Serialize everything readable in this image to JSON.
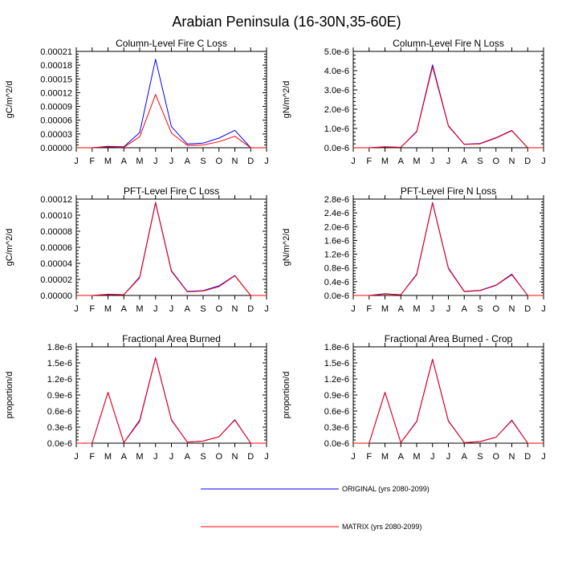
{
  "title": "Arabian Peninsula (16-30N,35-60E)",
  "colors": {
    "original": "#0000ff",
    "matrix": "#ff0000"
  },
  "legend": [
    {
      "name": "ORIGINAL (yrs 2080-2099)",
      "color": "#0000ff"
    },
    {
      "name": "MATRIX (yrs 2080-2099)",
      "color": "#ff0000"
    }
  ],
  "chart_data": [
    {
      "type": "line",
      "title": "Column-Level Fire C Loss",
      "ylabel": "gC/m^2/d",
      "xlabel": "",
      "categories": [
        "J",
        "F",
        "M",
        "A",
        "M",
        "J",
        "J",
        "A",
        "S",
        "O",
        "N",
        "D",
        "J"
      ],
      "ylim": [
        0,
        0.00021
      ],
      "yticks": [
        "0.00000",
        "0.00003",
        "0.00006",
        "0.00009",
        "0.00012",
        "0.00015",
        "0.00018",
        "0.00021"
      ],
      "series": [
        {
          "name": "ORIGINAL (yrs 2080-2099)",
          "values": [
            0,
            0,
            3e-06,
            2e-06,
            3.3e-05,
            0.000193,
            4.6e-05,
            8e-06,
            1e-05,
            2.1e-05,
            3.8e-05,
            0,
            0
          ]
        },
        {
          "name": "MATRIX (yrs 2080-2099)",
          "values": [
            0,
            0,
            2e-06,
            1e-06,
            2.4e-05,
            0.000116,
            3.2e-05,
            5e-06,
            6e-06,
            1.3e-05,
            2.5e-05,
            0,
            0
          ]
        }
      ]
    },
    {
      "type": "line",
      "title": "Column-Level Fire N Loss",
      "ylabel": "gN/m^2/d",
      "xlabel": "",
      "categories": [
        "J",
        "F",
        "M",
        "A",
        "M",
        "J",
        "J",
        "A",
        "S",
        "O",
        "N",
        "D",
        "J"
      ],
      "ylim": [
        0,
        5e-06
      ],
      "yticks": [
        "0.0e-6",
        "1.0e-6",
        "2.0e-6",
        "3.0e-6",
        "4.0e-6",
        "5.0e-6"
      ],
      "series": [
        {
          "name": "ORIGINAL (yrs 2080-2099)",
          "values": [
            0,
            0,
            5e-08,
            2e-08,
            8.5e-07,
            4.3e-06,
            1.15e-06,
            1.8e-07,
            2.2e-07,
            5.2e-07,
            9e-07,
            0,
            0
          ]
        },
        {
          "name": "MATRIX (yrs 2080-2099)",
          "values": [
            0,
            0,
            4e-08,
            2e-08,
            8.2e-07,
            4.2e-06,
            1.12e-06,
            1.7e-07,
            2e-07,
            5e-07,
            8.8e-07,
            0,
            0
          ]
        }
      ]
    },
    {
      "type": "line",
      "title": "PFT-Level Fire C Loss",
      "ylabel": "gC/m^2/d",
      "xlabel": "",
      "categories": [
        "J",
        "F",
        "M",
        "A",
        "M",
        "J",
        "J",
        "A",
        "S",
        "O",
        "N",
        "D",
        "J"
      ],
      "ylim": [
        0,
        0.00012
      ],
      "yticks": [
        "0.00000",
        "0.00002",
        "0.00004",
        "0.00006",
        "0.00008",
        "0.00010",
        "0.00012"
      ],
      "series": [
        {
          "name": "ORIGINAL (yrs 2080-2099)",
          "values": [
            0,
            0,
            1.5e-06,
            1e-06,
            2.3e-05,
            0.000116,
            3.1e-05,
            5e-06,
            6e-06,
            1.2e-05,
            2.5e-05,
            0,
            0
          ]
        },
        {
          "name": "MATRIX (yrs 2080-2099)",
          "values": [
            0,
            0,
            1.3e-06,
            9e-07,
            2.2e-05,
            0.000115,
            3e-05,
            4.5e-06,
            5.5e-06,
            1.1e-05,
            2.45e-05,
            0,
            0
          ]
        }
      ]
    },
    {
      "type": "line",
      "title": "PFT-Level Fire N Loss",
      "ylabel": "gN/m^2/d",
      "xlabel": "",
      "categories": [
        "J",
        "F",
        "M",
        "A",
        "M",
        "J",
        "J",
        "A",
        "S",
        "O",
        "N",
        "D",
        "J"
      ],
      "ylim": [
        0,
        2.8e-06
      ],
      "yticks": [
        "0.0e-6",
        "0.4e-6",
        "0.8e-6",
        "1.2e-6",
        "1.6e-6",
        "2.0e-6",
        "2.4e-6",
        "2.8e-6"
      ],
      "series": [
        {
          "name": "ORIGINAL (yrs 2080-2099)",
          "values": [
            0,
            0,
            5e-08,
            2e-08,
            6.2e-07,
            2.7e-06,
            8e-07,
            1.2e-07,
            1.5e-07,
            3e-07,
            6.2e-07,
            0,
            0
          ]
        },
        {
          "name": "MATRIX (yrs 2080-2099)",
          "values": [
            0,
            0,
            4e-08,
            2e-08,
            6e-07,
            2.68e-06,
            7.8e-07,
            1.1e-07,
            1.4e-07,
            2.9e-07,
            6e-07,
            0,
            0
          ]
        }
      ]
    },
    {
      "type": "line",
      "title": "Fractional Area Burned",
      "ylabel": "proportion/d",
      "xlabel": "",
      "categories": [
        "J",
        "F",
        "M",
        "A",
        "M",
        "J",
        "J",
        "A",
        "S",
        "O",
        "N",
        "D",
        "J"
      ],
      "ylim": [
        0,
        1.8e-06
      ],
      "yticks": [
        "0.0e-6",
        "0.3e-6",
        "0.6e-6",
        "0.9e-6",
        "1.2e-6",
        "1.5e-6",
        "1.8e-6"
      ],
      "series": [
        {
          "name": "ORIGINAL (yrs 2080-2099)",
          "values": [
            0,
            0,
            9.5e-07,
            1e-08,
            4.3e-07,
            1.6e-06,
            4.4e-07,
            2e-08,
            4e-08,
            1.2e-07,
            4.4e-07,
            0,
            0
          ]
        },
        {
          "name": "MATRIX (yrs 2080-2099)",
          "values": [
            0,
            0,
            9.5e-07,
            1e-08,
            4.1e-07,
            1.59e-06,
            4.3e-07,
            2e-08,
            4e-08,
            1.2e-07,
            4.3e-07,
            0,
            0
          ]
        }
      ]
    },
    {
      "type": "line",
      "title": "Fractional Area Burned - Crop",
      "ylabel": "proportion/d",
      "xlabel": "",
      "categories": [
        "J",
        "F",
        "M",
        "A",
        "M",
        "J",
        "J",
        "A",
        "S",
        "O",
        "N",
        "D",
        "J"
      ],
      "ylim": [
        0,
        1.8e-06
      ],
      "yticks": [
        "0.0e-6",
        "0.3e-6",
        "0.6e-6",
        "0.9e-6",
        "1.2e-6",
        "1.5e-6",
        "1.8e-6"
      ],
      "series": [
        {
          "name": "ORIGINAL (yrs 2080-2099)",
          "values": [
            0,
            0,
            9.5e-07,
            1e-08,
            4.1e-07,
            1.57e-06,
            4.2e-07,
            1e-08,
            3e-08,
            1.1e-07,
            4.3e-07,
            0,
            0
          ]
        },
        {
          "name": "MATRIX (yrs 2080-2099)",
          "values": [
            0,
            0,
            9.5e-07,
            1e-08,
            4e-07,
            1.56e-06,
            4.1e-07,
            1e-08,
            3e-08,
            1.1e-07,
            4.2e-07,
            0,
            0
          ]
        }
      ]
    }
  ]
}
